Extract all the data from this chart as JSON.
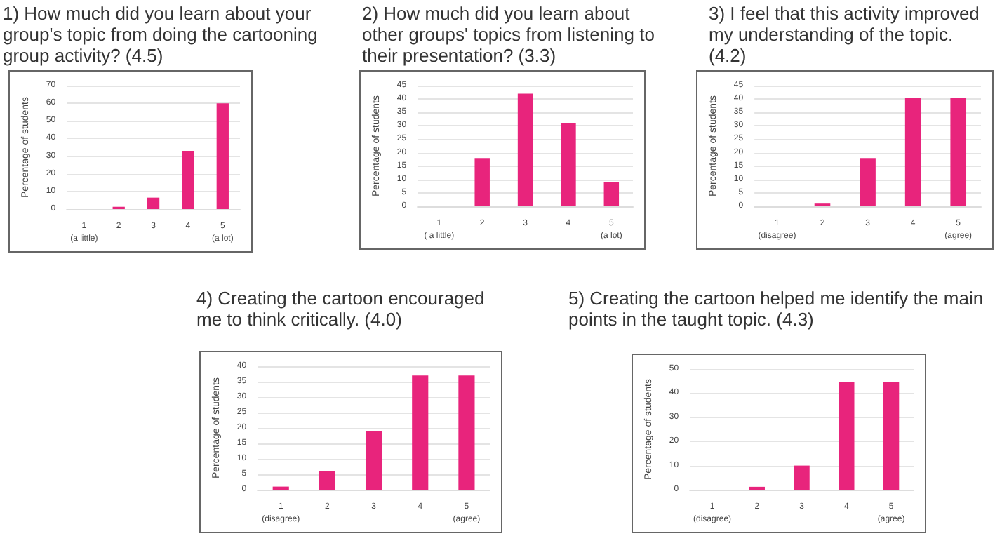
{
  "chart_data": [
    {
      "type": "bar",
      "title": "1) How much did you learn about your group's topic from doing the cartooning group activity? (4.5)",
      "ylabel": "Percentage of students",
      "categories": [
        "1\n(a little)",
        "2",
        "3",
        "4",
        "5\n(a lot)"
      ],
      "values": [
        0,
        1.3,
        6.5,
        33,
        60
      ],
      "color": "#e8247c",
      "ylim": [
        0,
        70
      ],
      "yticks": [
        0,
        10,
        20,
        30,
        40,
        50,
        60,
        70
      ],
      "grid": "y"
    },
    {
      "type": "bar",
      "title": "2) How much did you learn about other groups' topics from listening to their presentation? (3.3)",
      "ylabel": "Percentage of students",
      "categories": [
        "1\n( a little)",
        "2",
        "3",
        "4",
        "5\n(a lot)"
      ],
      "values": [
        0,
        18,
        42,
        31,
        9
      ],
      "color": "#e8247c",
      "ylim": [
        0,
        45
      ],
      "yticks": [
        0,
        5,
        10,
        15,
        20,
        25,
        30,
        35,
        40,
        45
      ],
      "grid": "y"
    },
    {
      "type": "bar",
      "title": "3) I feel that this activity improved my understanding of the topic. (4.2)",
      "ylabel": "Percentage of students",
      "categories": [
        "1\n(disagree)",
        "2",
        "3",
        "4",
        "5\n(agree)"
      ],
      "values": [
        0,
        1,
        18,
        40.5,
        40.5
      ],
      "color": "#e8247c",
      "ylim": [
        0,
        45
      ],
      "yticks": [
        0,
        5,
        10,
        15,
        20,
        25,
        30,
        35,
        40,
        45
      ],
      "grid": "y"
    },
    {
      "type": "bar",
      "title": "4) Creating the cartoon encouraged me to think critically. (4.0)",
      "ylabel": "Percentage of students",
      "categories": [
        "1\n(disagree)",
        "2",
        "3",
        "4",
        "5\n(agree)"
      ],
      "values": [
        1,
        6,
        19,
        37,
        37
      ],
      "color": "#e8247c",
      "ylim": [
        0,
        40
      ],
      "yticks": [
        0,
        5,
        10,
        15,
        20,
        25,
        30,
        35,
        40
      ],
      "grid": "y"
    },
    {
      "type": "bar",
      "title": "5) Creating the cartoon helped me identify the main points in the taught topic. (4.3)",
      "ylabel": "Percentage of students",
      "categories": [
        "1\n(disagree)",
        "2",
        "3",
        "4",
        "5\n(agree)"
      ],
      "values": [
        0,
        1.2,
        10,
        44.5,
        44.5
      ],
      "color": "#e8247c",
      "ylim": [
        0,
        50
      ],
      "yticks": [
        0,
        10,
        20,
        30,
        40,
        50
      ],
      "grid": "y"
    }
  ]
}
